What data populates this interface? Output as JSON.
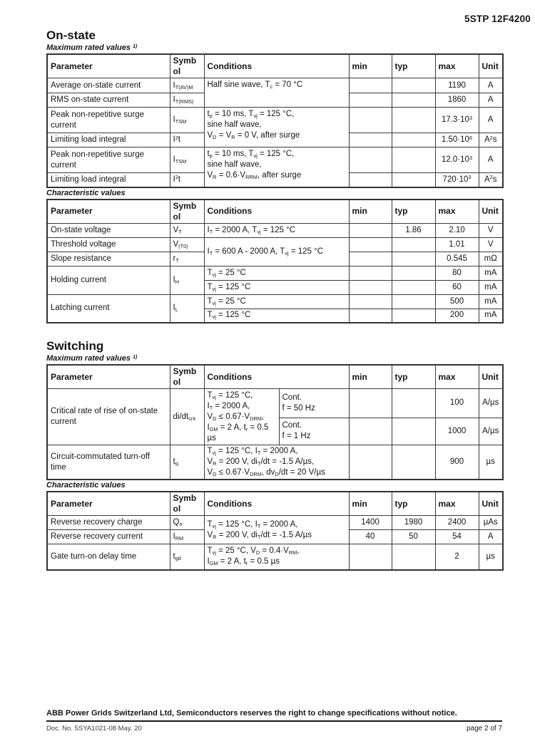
{
  "doc": {
    "part_number": "5STP 12F4200",
    "footer_notice": "ABB Power Grids Switzerland Ltd, Semiconductors reserves the right to change specifications without notice.",
    "doc_no": "Doc. No. 5SYA1021-08 May. 20",
    "page_info": "page 2 of 7"
  },
  "sections": {
    "onstate": {
      "heading": "On-state",
      "max_label": "Maximum rated values ^1)^",
      "char_label": "Characteristic values"
    },
    "switching": {
      "heading": "Switching",
      "max_label": "Maximum rated values ^1)^",
      "char_label": "Characteristic values"
    }
  },
  "headers": {
    "parameter": "Parameter",
    "symbol": "Symbol",
    "conditions": "Conditions",
    "min": "min",
    "typ": "typ",
    "max": "max",
    "unit": "Unit"
  },
  "tables": {
    "t1": {
      "rows": [
        {
          "param": "Average on-state current",
          "sym": "I~T(AV)M~",
          "cond": "Half sine wave, T~c~ = 70 °C",
          "max": "1190",
          "unit": "A"
        },
        {
          "param": "RMS on-state current",
          "sym": "I~T(RMS)~",
          "max": "1860",
          "unit": "A"
        },
        {
          "param": "Peak non-repetitive surge\ncurrent",
          "sym": "I~TSM~",
          "cond": "t~p~ = 10 ms, T~vj~ = 125 °C,\nsine half wave,\nV~D~ = V~R~ = 0 V, after surge",
          "max": "17.3·10^3^",
          "unit": "A"
        },
        {
          "param": "Limiting load integral",
          "sym": "I^2^t",
          "max": "1.50·10^6^",
          "unit": "A^2^s"
        },
        {
          "param": "Peak non-repetitive surge\ncurrent",
          "sym": "I~TSM~",
          "cond": "t~p~ = 10 ms, T~vj~ = 125 °C,\nsine half wave,\nV~R~ = 0.6·V~RRM~, after surge",
          "max": "12.0·10^3^",
          "unit": "A"
        },
        {
          "param": "Limiting load integral",
          "sym": "I^2^t",
          "max": "720·10^3^",
          "unit": "A^2^s"
        }
      ]
    },
    "t2": {
      "rows": [
        {
          "param": "On-state voltage",
          "sym": "V~T~",
          "cond": "I~T~ = 2000 A, T~vj~ = 125 °C",
          "typ": "1.86",
          "max": "2.10",
          "unit": "V"
        },
        {
          "param": "Threshold voltage",
          "sym": "V~(T0)~",
          "cond": "I~T~ = 600 A - 2000 A, T~vj~ = 125 °C",
          "max": "1.01",
          "unit": "V"
        },
        {
          "param": "Slope resistance",
          "sym": "r~T~",
          "max": "0.545",
          "unit": "mΩ"
        },
        {
          "param": "Holding current",
          "sym": "I~H~",
          "cond": "T~vj~ = 25 °C",
          "max": "80",
          "unit": "mA"
        },
        {
          "cond": "T~vj~ = 125 °C",
          "max": "60",
          "unit": "mA"
        },
        {
          "param": "Latching current",
          "sym": "I~L~",
          "cond": "T~vj~ = 25 °C",
          "max": "500",
          "unit": "mA"
        },
        {
          "cond": "T~vj~ = 125 °C",
          "max": "200",
          "unit": "mA"
        }
      ]
    },
    "t3": {
      "rows": [
        {
          "param": "Critical rate of rise of on-state\ncurrent",
          "sym": "di/dt~crit~",
          "cond": "T~vj~ = 125 °C,\nI~T~ = 2000 A,\nV~D~ ≤ 0.67·V~DRM~,\nI~GM~ = 2 A, t~r~ = 0.5 µs",
          "cond2": "Cont.\nf = 50 Hz",
          "max": "100",
          "unit": "A/µs"
        },
        {
          "cond2": "Cont.\nf = 1 Hz",
          "max": "1000",
          "unit": "A/µs"
        },
        {
          "param": "Circuit-commutated turn-off\ntime",
          "sym": "t~q~",
          "cond": "T~vj~ = 125 °C, I~T~ = 2000 A,\nV~R~ = 200 V, di~T~/dt = -1.5 A/µs,\nV~D~ ≤ 0.67·V~DRM~, dv~D~/dt = 20 V/µs",
          "max": "900",
          "unit": "µs"
        }
      ]
    },
    "t4": {
      "rows": [
        {
          "param": "Reverse recovery charge",
          "sym": "Q~rr~",
          "cond": "T~vj~ = 125 °C, I~T~ = 2000 A,\nV~R~ = 200 V, di~T~/dt = -1.5 A/µs",
          "min": "1400",
          "typ": "1980",
          "max": "2400",
          "unit": "µAs"
        },
        {
          "param": "Reverse recovery current",
          "sym": "I~RM~",
          "min": "40",
          "typ": "50",
          "max": "54",
          "unit": "A"
        },
        {
          "param": "Gate turn-on delay time",
          "sym": "t~gd~",
          "cond": "T~vj~ = 25 °C, V~D~ = 0.4·V~RM~,\nI~GM~ = 2 A, t~r~ = 0.5 µs",
          "max": "2",
          "unit": "µs"
        }
      ]
    }
  }
}
